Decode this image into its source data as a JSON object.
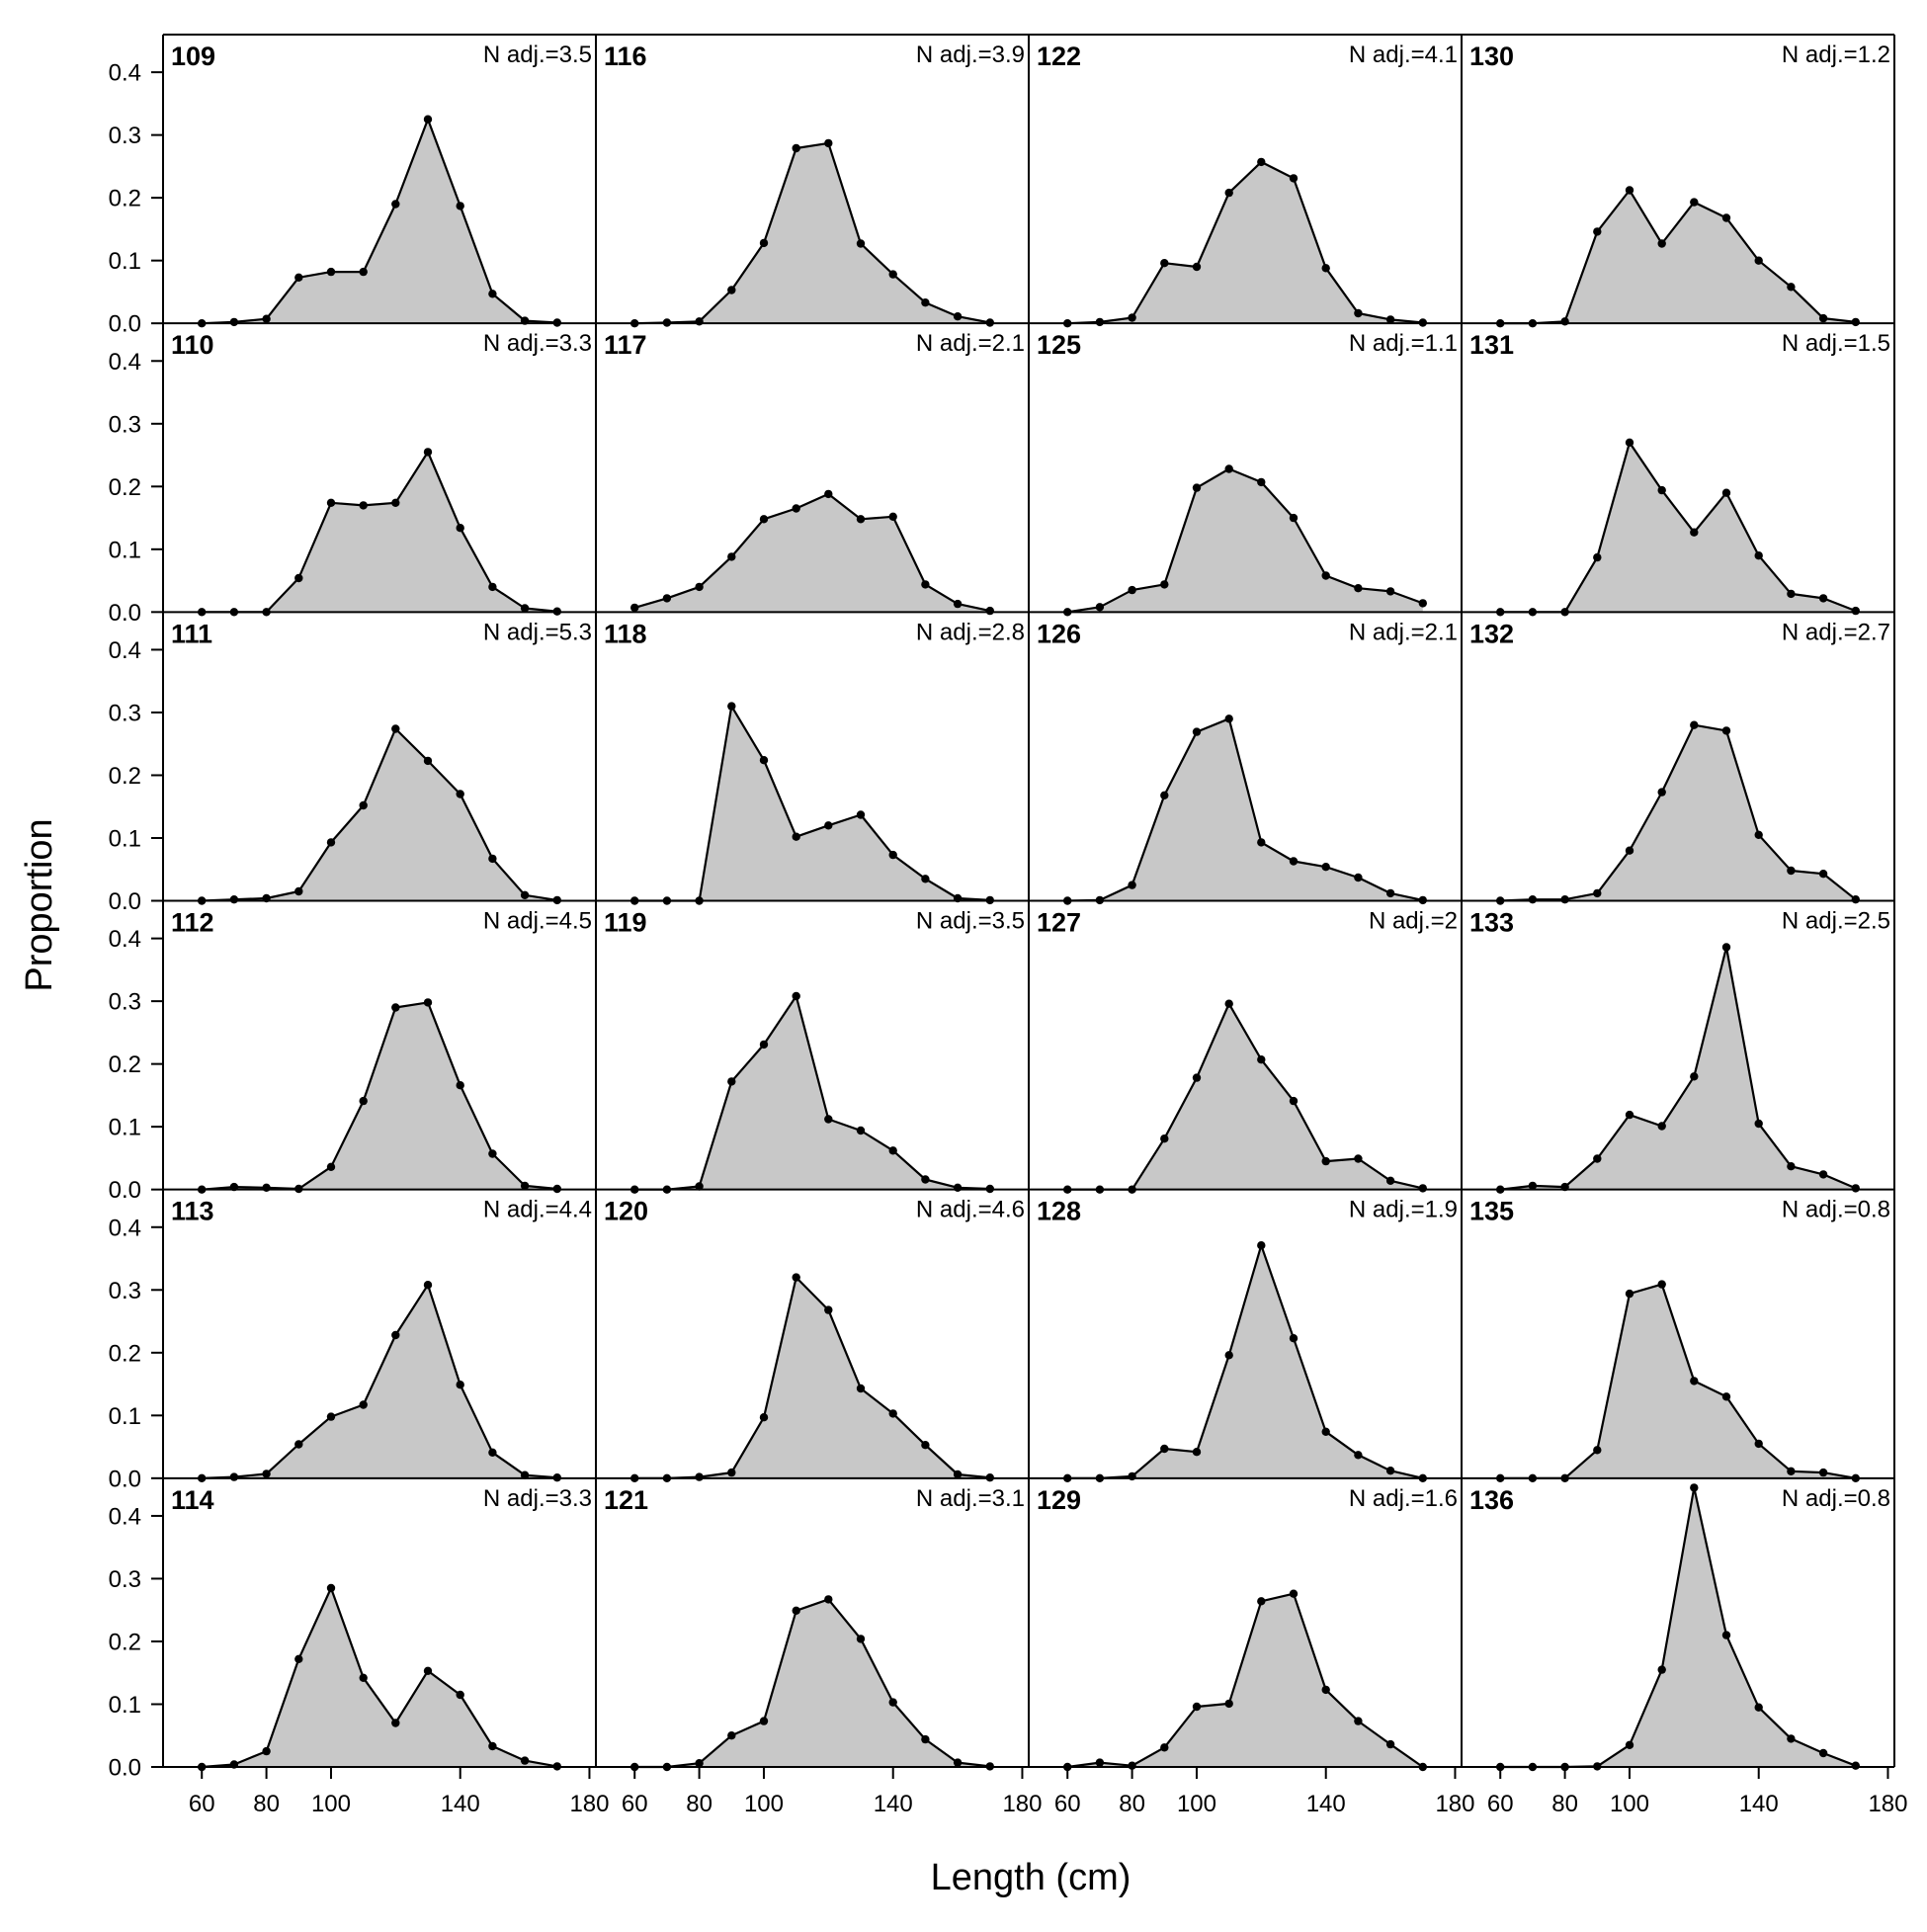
{
  "chart_data": {
    "type": "area",
    "xlabel": "Length (cm)",
    "ylabel": "Proportion",
    "xlim": [
      48,
      182
    ],
    "ylim": [
      0,
      0.46
    ],
    "x_ticks": [
      60,
      80,
      100,
      140,
      180
    ],
    "y_ticks": [
      "0.0",
      "0.1",
      "0.2",
      "0.3",
      "0.4"
    ],
    "x_tick_labels": [
      "60",
      "80",
      "100",
      "140",
      "180"
    ],
    "y_tick_labels": [
      "0.0",
      "0.1",
      "0.2",
      "0.3",
      "0.4"
    ],
    "x_values": [
      60,
      70,
      80,
      90,
      100,
      110,
      120,
      130,
      140,
      150,
      160,
      170
    ],
    "fill_color": "#c8c8c8",
    "line_color": "#000000",
    "grid": false,
    "layout": {
      "rows": 6,
      "columns": 4
    },
    "panels": [
      {
        "name": "109",
        "annotation": "N adj.=3.5",
        "values": [
          0,
          0.002,
          0.007,
          0.073,
          0.082,
          0.082,
          0.19,
          0.325,
          0.187,
          0.047,
          0.004,
          0.001
        ]
      },
      {
        "name": "116",
        "annotation": "N adj.=3.9",
        "values": [
          0,
          0.001,
          0.003,
          0.053,
          0.128,
          0.279,
          0.287,
          0.127,
          0.078,
          0.033,
          0.011,
          0.001
        ]
      },
      {
        "name": "122",
        "annotation": "N adj.=4.1",
        "values": [
          0,
          0.002,
          0.009,
          0.096,
          0.09,
          0.208,
          0.257,
          0.231,
          0.088,
          0.016,
          0.006,
          0.001
        ]
      },
      {
        "name": "130",
        "annotation": "N adj.=1.2",
        "values": [
          0,
          0,
          0.003,
          0.146,
          0.212,
          0.127,
          0.193,
          0.168,
          0.1,
          0.058,
          0.008,
          0.002
        ]
      },
      {
        "name": "110",
        "annotation": "N adj.=3.3",
        "values": [
          0,
          0,
          0,
          0.054,
          0.174,
          0.17,
          0.174,
          0.255,
          0.134,
          0.04,
          0.006,
          0.001
        ]
      },
      {
        "name": "117",
        "annotation": "N adj.=2.1",
        "values": [
          0.007,
          0.022,
          0.04,
          0.088,
          0.148,
          0.165,
          0.188,
          0.148,
          0.152,
          0.044,
          0.013,
          0.002
        ]
      },
      {
        "name": "125",
        "annotation": "N adj.=1.1",
        "values": [
          0,
          0.008,
          0.035,
          0.044,
          0.198,
          0.228,
          0.207,
          0.15,
          0.058,
          0.038,
          0.033,
          0.014
        ]
      },
      {
        "name": "131",
        "annotation": "N adj.=1.5",
        "values": [
          0,
          0,
          0,
          0.087,
          0.27,
          0.194,
          0.127,
          0.19,
          0.09,
          0.029,
          0.022,
          0.002
        ]
      },
      {
        "name": "111",
        "annotation": "N adj.=5.3",
        "values": [
          0,
          0.002,
          0.004,
          0.015,
          0.093,
          0.152,
          0.274,
          0.223,
          0.17,
          0.067,
          0.009,
          0.001
        ]
      },
      {
        "name": "118",
        "annotation": "N adj.=2.8",
        "values": [
          0,
          0,
          0,
          0.31,
          0.224,
          0.102,
          0.12,
          0.137,
          0.073,
          0.035,
          0.004,
          0.001
        ]
      },
      {
        "name": "126",
        "annotation": "N adj.=2.1",
        "values": [
          0,
          0.001,
          0.025,
          0.168,
          0.269,
          0.29,
          0.093,
          0.063,
          0.054,
          0.037,
          0.012,
          0.001
        ]
      },
      {
        "name": "132",
        "annotation": "N adj.=2.7",
        "values": [
          0,
          0.002,
          0.002,
          0.012,
          0.08,
          0.173,
          0.28,
          0.271,
          0.105,
          0.048,
          0.043,
          0.002
        ]
      },
      {
        "name": "112",
        "annotation": "N adj.=4.5",
        "values": [
          0,
          0.004,
          0.003,
          0.001,
          0.036,
          0.141,
          0.29,
          0.298,
          0.166,
          0.057,
          0.006,
          0.001
        ]
      },
      {
        "name": "119",
        "annotation": "N adj.=3.5",
        "values": [
          0,
          0,
          0.005,
          0.172,
          0.231,
          0.308,
          0.112,
          0.094,
          0.062,
          0.016,
          0.003,
          0.001
        ]
      },
      {
        "name": "127",
        "annotation": "N adj.=2",
        "values": [
          0,
          0,
          0,
          0.081,
          0.178,
          0.296,
          0.207,
          0.141,
          0.045,
          0.049,
          0.014,
          0.002
        ]
      },
      {
        "name": "133",
        "annotation": "N adj.=2.5",
        "values": [
          0,
          0.006,
          0.004,
          0.049,
          0.119,
          0.101,
          0.18,
          0.386,
          0.105,
          0.037,
          0.024,
          0.002
        ]
      },
      {
        "name": "113",
        "annotation": "N adj.=4.4",
        "values": [
          0,
          0.002,
          0.007,
          0.054,
          0.098,
          0.117,
          0.228,
          0.308,
          0.149,
          0.041,
          0.005,
          0.001
        ]
      },
      {
        "name": "120",
        "annotation": "N adj.=4.6",
        "values": [
          0,
          0,
          0.002,
          0.009,
          0.097,
          0.32,
          0.268,
          0.143,
          0.103,
          0.053,
          0.006,
          0.001
        ]
      },
      {
        "name": "128",
        "annotation": "N adj.=1.9",
        "values": [
          0,
          0,
          0.003,
          0.047,
          0.042,
          0.196,
          0.371,
          0.223,
          0.074,
          0.037,
          0.012,
          0
        ]
      },
      {
        "name": "135",
        "annotation": "N adj.=0.8",
        "values": [
          0,
          0,
          0,
          0.045,
          0.294,
          0.309,
          0.155,
          0.13,
          0.055,
          0.011,
          0.009,
          0
        ]
      },
      {
        "name": "114",
        "annotation": "N adj.=3.3",
        "values": [
          0,
          0.004,
          0.025,
          0.172,
          0.285,
          0.142,
          0.07,
          0.153,
          0.115,
          0.033,
          0.01,
          0.001
        ]
      },
      {
        "name": "121",
        "annotation": "N adj.=3.1",
        "values": [
          0,
          0,
          0.006,
          0.05,
          0.073,
          0.249,
          0.267,
          0.204,
          0.103,
          0.044,
          0.007,
          0.001
        ]
      },
      {
        "name": "129",
        "annotation": "N adj.=1.6",
        "values": [
          0,
          0.007,
          0.002,
          0.031,
          0.096,
          0.101,
          0.264,
          0.276,
          0.123,
          0.073,
          0.036,
          0
        ]
      },
      {
        "name": "136",
        "annotation": "N adj.=0.8",
        "values": [
          0,
          0,
          0,
          0.001,
          0.035,
          0.155,
          0.445,
          0.21,
          0.095,
          0.045,
          0.022,
          0.002
        ]
      }
    ]
  }
}
